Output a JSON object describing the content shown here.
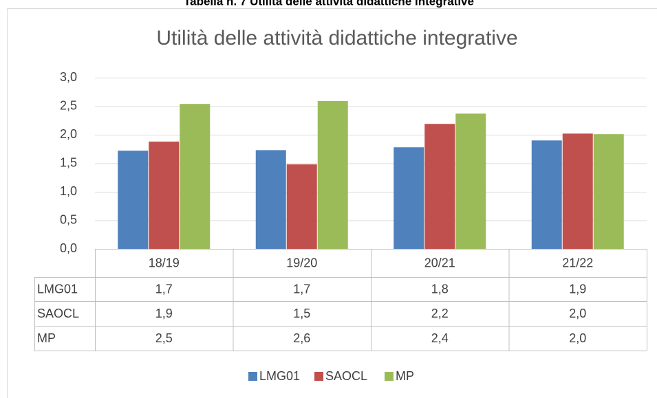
{
  "caption": "Tabella n. 7 Utilità delle attività didattiche integrative",
  "chart_data": {
    "type": "bar",
    "title": "Utilità delle attività didattiche integrative",
    "categories": [
      "18/19",
      "19/20",
      "20/21",
      "21/22"
    ],
    "series": [
      {
        "name": "LMG01",
        "color": "#4f81bd",
        "values": [
          1.72,
          1.73,
          1.78,
          1.9
        ],
        "value_labels": [
          "1,7",
          "1,7",
          "1,8",
          "1,9"
        ]
      },
      {
        "name": "SAOCL",
        "color": "#c0504d",
        "values": [
          1.88,
          1.48,
          2.19,
          2.02
        ],
        "value_labels": [
          "1,9",
          "1,5",
          "2,2",
          "2,0"
        ]
      },
      {
        "name": "MP",
        "color": "#9bbb59",
        "values": [
          2.54,
          2.59,
          2.37,
          2.01
        ],
        "value_labels": [
          "2,5",
          "2,6",
          "2,4",
          "2,0"
        ]
      }
    ],
    "ylim": [
      0,
      3
    ],
    "yticks": [
      {
        "value": 0,
        "label": "0,0"
      },
      {
        "value": 0.5,
        "label": "0,5"
      },
      {
        "value": 1,
        "label": "1,0"
      },
      {
        "value": 1.5,
        "label": "1,5"
      },
      {
        "value": 2,
        "label": "2,0"
      },
      {
        "value": 2.5,
        "label": "2,5"
      },
      {
        "value": 3,
        "label": "3,0"
      }
    ],
    "grid": true,
    "legend": "bottom"
  }
}
